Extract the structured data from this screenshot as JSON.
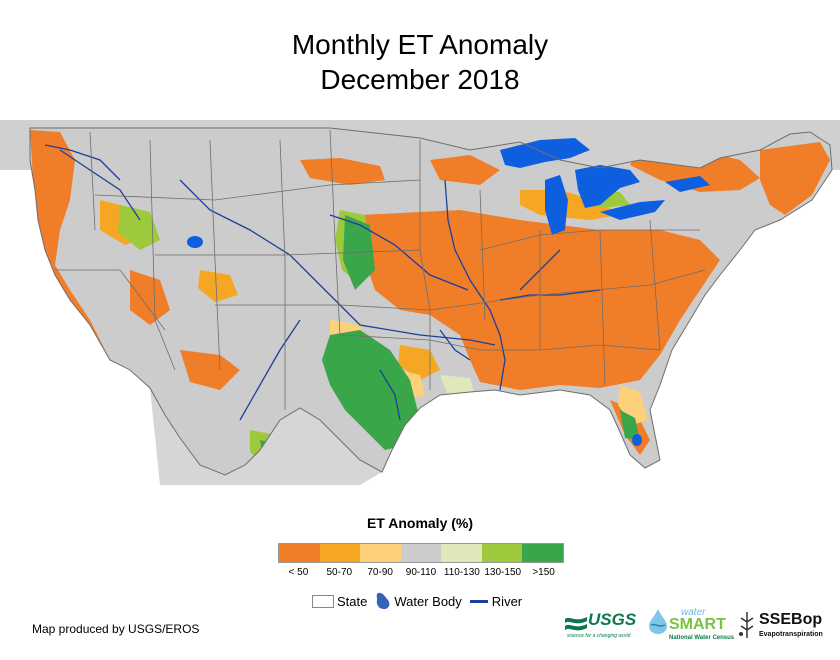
{
  "title": {
    "line1": "Monthly ET Anomaly",
    "line2": "December 2018"
  },
  "map": {
    "region": "Conterminous United States",
    "background_color": "#cccccc",
    "water_color": "#0d5fe0",
    "river_color": "#1c3f9c",
    "state_border_color": "#6e6e6e"
  },
  "legend": {
    "title": "ET Anomaly (%)",
    "classes": [
      {
        "label": "< 50",
        "color": "#f07d28"
      },
      {
        "label": "50-70",
        "color": "#f5a623"
      },
      {
        "label": "70-90",
        "color": "#fdd17a"
      },
      {
        "label": "90-110",
        "color": "#cccccc"
      },
      {
        "label": "110-130",
        "color": "#dfe8b8"
      },
      {
        "label": "130-150",
        "color": "#9ec93d"
      },
      {
        "label": ">150",
        "color": "#3aa64a"
      }
    ]
  },
  "reference_legend": {
    "state_label": "State",
    "water_label": "Water Body",
    "river_label": "River"
  },
  "credit": "Map produced by USGS/EROS",
  "logos": {
    "usgs": "USGS",
    "usgs_tagline": "science for a changing world",
    "watersmart_top": "water",
    "watersmart_main": "SMART",
    "watersmart_tagline": "National Water Census",
    "ssebop": "SSEBop",
    "ssebop_tagline": "Evapotranspiration"
  }
}
